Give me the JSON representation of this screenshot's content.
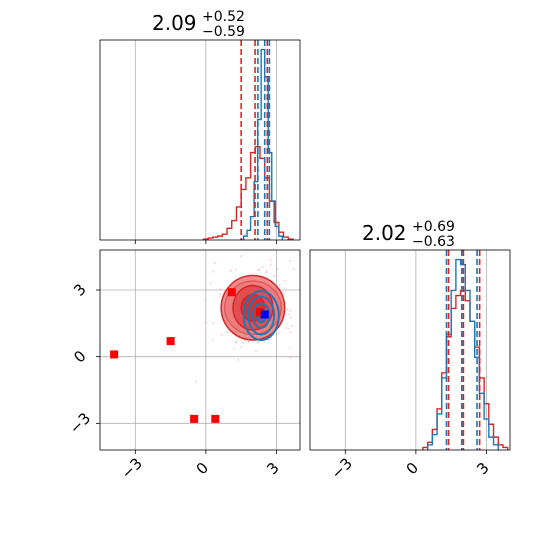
{
  "chart_data": {
    "type": "scatter",
    "layout": "corner",
    "colors": {
      "series_a": "#1f77b4",
      "series_b": "#d62728",
      "points": "#ff0000",
      "truth": "#0000ff"
    },
    "grid": true,
    "panels": {
      "p1_hist": {
        "type": "histogram",
        "title": {
          "median": "2.09",
          "plus": "+0.52",
          "minus": "−0.59"
        },
        "xlim": [
          -4.5,
          4.0
        ],
        "blue": {
          "edges": [
            1.45,
            1.6,
            1.75,
            1.9,
            2.05,
            2.2,
            2.35,
            2.5,
            2.65,
            2.8,
            2.95,
            3.1,
            3.25
          ],
          "counts": [
            0.0,
            0.02,
            0.05,
            0.12,
            0.3,
            0.62,
            0.98,
            0.84,
            0.45,
            0.2,
            0.07,
            0.02
          ],
          "quantiles": [
            2.21,
            2.5,
            2.7
          ]
        },
        "red": {
          "edges": [
            -0.1,
            0.1,
            0.3,
            0.5,
            0.7,
            0.9,
            1.1,
            1.3,
            1.5,
            1.7,
            1.9,
            2.1,
            2.3,
            2.5,
            2.7,
            2.9,
            3.1,
            3.3,
            3.5,
            3.7
          ],
          "counts": [
            0.005,
            0.01,
            0.015,
            0.02,
            0.03,
            0.06,
            0.1,
            0.17,
            0.26,
            0.32,
            0.45,
            0.48,
            0.42,
            0.32,
            0.2,
            0.09,
            0.04,
            0.015,
            0.005
          ],
          "quantiles": [
            1.5,
            2.09,
            2.61
          ]
        }
      },
      "p2_hist": {
        "type": "histogram",
        "title": {
          "median": "2.02",
          "plus": "+0.69",
          "minus": "−0.63"
        },
        "xlim": [
          -4.5,
          4.0
        ],
        "xticks": [
          "−3",
          "0",
          "3"
        ],
        "blue": {
          "edges": [
            0.5,
            0.7,
            0.9,
            1.1,
            1.3,
            1.5,
            1.7,
            1.9,
            2.1,
            2.3,
            2.5,
            2.7,
            2.9,
            3.1,
            3.3,
            3.5
          ],
          "counts": [
            0.02,
            0.06,
            0.14,
            0.28,
            0.45,
            0.62,
            0.74,
            0.72,
            0.62,
            0.5,
            0.36,
            0.22,
            0.12,
            0.05,
            0.02
          ],
          "quantiles": [
            1.3,
            1.95,
            2.6
          ]
        },
        "red": {
          "edges": [
            0.3,
            0.5,
            0.7,
            0.9,
            1.1,
            1.3,
            1.5,
            1.7,
            1.9,
            2.1,
            2.3,
            2.5,
            2.7,
            2.9,
            3.1,
            3.3,
            3.5,
            3.7,
            3.9
          ],
          "counts": [
            0.01,
            0.03,
            0.08,
            0.16,
            0.3,
            0.44,
            0.55,
            0.6,
            0.62,
            0.58,
            0.5,
            0.4,
            0.28,
            0.18,
            0.1,
            0.05,
            0.02,
            0.01
          ],
          "quantiles": [
            1.39,
            2.02,
            2.71
          ]
        }
      },
      "p12_scatter": {
        "xlim": [
          -4.5,
          4.0
        ],
        "ylim": [
          -4.2,
          4.8
        ],
        "xticks": [
          "−3",
          "0",
          "3"
        ],
        "yticks": [
          "3",
          "0",
          "−3"
        ],
        "markers": [
          {
            "x": -3.9,
            "y": 0.1
          },
          {
            "x": -1.5,
            "y": 0.7
          },
          {
            "x": -0.5,
            "y": -2.8
          },
          {
            "x": 0.4,
            "y": -2.8
          },
          {
            "x": 1.1,
            "y": 2.9
          },
          {
            "x": 2.3,
            "y": 2.0
          }
        ],
        "truth": {
          "x": 2.5,
          "y": 1.9
        },
        "red_density": {
          "center": [
            2.0,
            2.2
          ],
          "radii": [
            [
              1.2,
              1.2
            ],
            [
              1.35,
              1.45
            ],
            [
              0.85,
              1.0
            ],
            [
              0.5,
              0.6
            ]
          ]
        },
        "blue_density": {
          "center": [
            2.35,
            1.85
          ],
          "radii": [
            [
              0.75,
              1.1
            ],
            [
              0.55,
              0.85
            ],
            [
              0.35,
              0.55
            ],
            [
              0.2,
              0.3
            ]
          ]
        }
      }
    }
  }
}
